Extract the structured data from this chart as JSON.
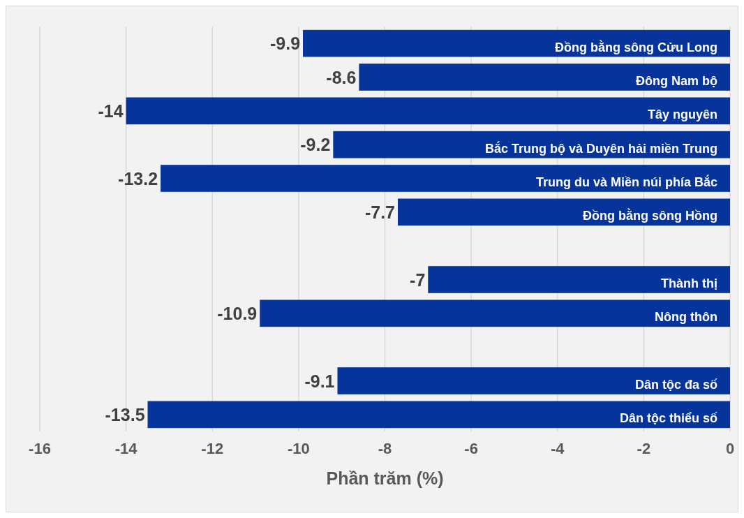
{
  "chart_data": {
    "type": "bar",
    "orientation": "horizontal",
    "xlabel": "Phần trăm (%)",
    "categories": [
      "Đồng bằng sông Cửu Long",
      "Đông Nam bộ",
      "Tây nguyên",
      "Bắc Trung bộ và Duyên hải miền Trung",
      "Trung du và Miền núi phía Bắc",
      "Đồng bằng sông Hồng",
      null,
      "Thành thị",
      "Nông thôn",
      null,
      "Dân tộc đa số",
      "Dân tộc thiểu số"
    ],
    "values": [
      -9.9,
      -8.6,
      -14,
      -9.2,
      -13.2,
      -7.7,
      null,
      -7,
      -10.9,
      null,
      -9.1,
      -13.5
    ],
    "color": "#06349a",
    "xlim": [
      -16,
      0
    ],
    "xticks": [
      -16,
      -14,
      -12,
      -10,
      -8,
      -6,
      -4,
      -2,
      0
    ],
    "grid": "x",
    "data_labels": true,
    "tick_labels": "x"
  }
}
